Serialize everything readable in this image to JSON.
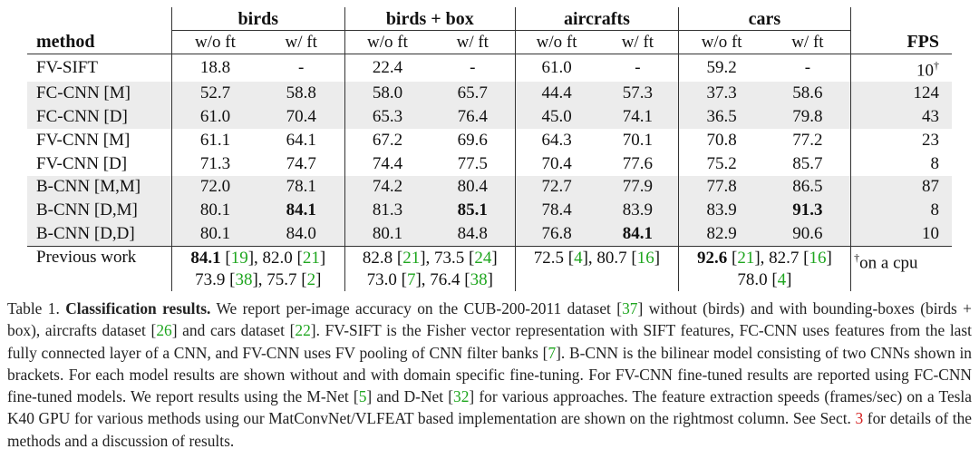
{
  "table": {
    "method_header": "method",
    "fps_header": "FPS",
    "groups": [
      "birds",
      "birds + box",
      "aircrafts",
      "cars"
    ],
    "sub_wo": "w/o ft",
    "sub_w": "w/ ft",
    "rows": [
      {
        "method": "FV-SIFT",
        "v": [
          "18.8",
          "-",
          "22.4",
          "-",
          "61.0",
          "-",
          "59.2",
          "-"
        ],
        "fps": "10",
        "fps_mark": "†",
        "bold": [],
        "shade": false
      },
      {
        "method": "FC-CNN [M]",
        "v": [
          "52.7",
          "58.8",
          "58.0",
          "65.7",
          "44.4",
          "57.3",
          "37.3",
          "58.6"
        ],
        "fps": "124",
        "fps_mark": "",
        "bold": [],
        "shade": true
      },
      {
        "method": "FC-CNN [D]",
        "v": [
          "61.0",
          "70.4",
          "65.3",
          "76.4",
          "45.0",
          "74.1",
          "36.5",
          "79.8"
        ],
        "fps": "43",
        "fps_mark": "",
        "bold": [],
        "shade": true
      },
      {
        "method": "FV-CNN [M]",
        "v": [
          "61.1",
          "64.1",
          "67.2",
          "69.6",
          "64.3",
          "70.1",
          "70.8",
          "77.2"
        ],
        "fps": "23",
        "fps_mark": "",
        "bold": [],
        "shade": false
      },
      {
        "method": "FV-CNN [D]",
        "v": [
          "71.3",
          "74.7",
          "74.4",
          "77.5",
          "70.4",
          "77.6",
          "75.2",
          "85.7"
        ],
        "fps": "8",
        "fps_mark": "",
        "bold": [],
        "shade": false
      },
      {
        "method": "B-CNN [M,M]",
        "v": [
          "72.0",
          "78.1",
          "74.2",
          "80.4",
          "72.7",
          "77.9",
          "77.8",
          "86.5"
        ],
        "fps": "87",
        "fps_mark": "",
        "bold": [],
        "shade": true
      },
      {
        "method": "B-CNN [D,M]",
        "v": [
          "80.1",
          "84.1",
          "81.3",
          "85.1",
          "78.4",
          "83.9",
          "83.9",
          "91.3"
        ],
        "fps": "8",
        "fps_mark": "",
        "bold": [
          1,
          3,
          7
        ],
        "shade": true
      },
      {
        "method": "B-CNN [D,D]",
        "v": [
          "80.1",
          "84.0",
          "80.1",
          "84.8",
          "76.8",
          "84.1",
          "82.9",
          "90.6"
        ],
        "fps": "10",
        "fps_mark": "",
        "bold": [
          5
        ],
        "shade": true
      }
    ],
    "previous": {
      "label": "Previous work",
      "birds": [
        [
          {
            "t": "84.1",
            "b": true
          },
          {
            "t": " ["
          },
          {
            "t": "19",
            "ref": true
          },
          {
            "t": "], 82.0 ["
          },
          {
            "t": "21",
            "ref": true
          },
          {
            "t": "]"
          }
        ],
        [
          {
            "t": "73.9 ["
          },
          {
            "t": "38",
            "ref": true
          },
          {
            "t": "], 75.7 ["
          },
          {
            "t": "2",
            "ref": true
          },
          {
            "t": "]"
          }
        ]
      ],
      "box": [
        [
          {
            "t": "82.8 ["
          },
          {
            "t": "21",
            "ref": true
          },
          {
            "t": "], 73.5 ["
          },
          {
            "t": "24",
            "ref": true
          },
          {
            "t": "]"
          }
        ],
        [
          {
            "t": "73.0 ["
          },
          {
            "t": "7",
            "ref": true
          },
          {
            "t": "], 76.4 ["
          },
          {
            "t": "38",
            "ref": true
          },
          {
            "t": "]"
          }
        ]
      ],
      "air": [
        [
          {
            "t": "72.5 ["
          },
          {
            "t": "4",
            "ref": true
          },
          {
            "t": "], 80.7 ["
          },
          {
            "t": "16",
            "ref": true
          },
          {
            "t": "]"
          }
        ]
      ],
      "cars": [
        [
          {
            "t": "92.6",
            "b": true
          },
          {
            "t": " ["
          },
          {
            "t": "21",
            "ref": true
          },
          {
            "t": "], 82.7 ["
          },
          {
            "t": "16",
            "ref": true
          },
          {
            "t": "]"
          }
        ],
        [
          {
            "t": "78.0 ["
          },
          {
            "t": "4",
            "ref": true
          },
          {
            "t": "]"
          }
        ]
      ],
      "fps_mark": "†",
      "fps_note": "on a cpu"
    }
  },
  "caption": [
    {
      "t": "Table 1.  "
    },
    {
      "t": "Classification results.",
      "b": true
    },
    {
      "t": " We report per-image accuracy on the CUB-200-2011 dataset ["
    },
    {
      "t": "37",
      "ref": true
    },
    {
      "t": "] without (birds) and with bounding-boxes (birds + box), aircrafts dataset ["
    },
    {
      "t": "26",
      "ref": true
    },
    {
      "t": "] and cars dataset ["
    },
    {
      "t": "22",
      "ref": true
    },
    {
      "t": "].  FV-SIFT is the Fisher vector representation with SIFT features, FC-CNN uses features from the last fully connected layer of a CNN, and FV-CNN uses FV pooling of CNN filter banks ["
    },
    {
      "t": "7",
      "ref": true
    },
    {
      "t": "].  B-CNN is the bilinear model consisting of two CNNs shown in brackets.  For each model results are shown without and with domain specific fine-tuning.  For FV-CNN fine-tuned results are reported using FC-CNN fine-tuned models.  We report results using the M-Net ["
    },
    {
      "t": "5",
      "ref": true
    },
    {
      "t": "] and D-Net ["
    },
    {
      "t": "32",
      "ref": true
    },
    {
      "t": "] for various approaches. The feature extraction speeds (frames/sec) on a Tesla K40 GPU for various methods using our MatConvNet/VLFEAT based implementation are shown on the rightmost column. See Sect. "
    },
    {
      "t": "3",
      "red": true
    },
    {
      "t": " for details of the methods and a discussion of results."
    }
  ]
}
